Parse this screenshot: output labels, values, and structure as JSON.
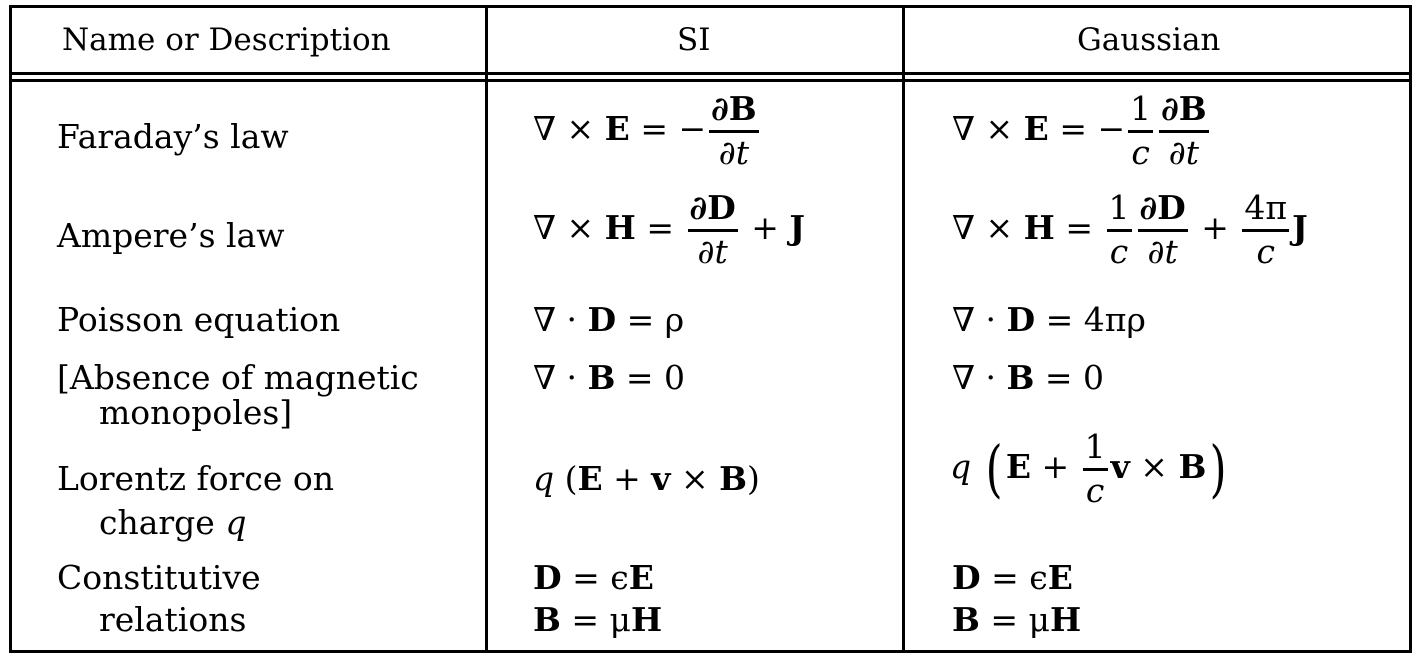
{
  "headers": {
    "description": "Name or Description",
    "si": "SI",
    "gaussian": "Gaussian"
  },
  "rows": {
    "faraday": {
      "label": "Faraday’s law",
      "si": {
        "lhs": "∇ × ",
        "E": "E",
        "eq": " = −",
        "num": "∂B",
        "den": "∂t"
      },
      "gauss": {
        "lhs": "∇ × ",
        "E": "E",
        "eq": " = −",
        "one": "1",
        "c": "c",
        "num": "∂B",
        "den": "∂t"
      }
    },
    "ampere": {
      "label": "Ampere’s law",
      "si": {
        "lhs": "∇ × ",
        "H": "H",
        "eq": " = ",
        "num": "∂D",
        "den": "∂t",
        "plus": " + ",
        "J": "J"
      },
      "gauss": {
        "lhs": "∇ × ",
        "H": "H",
        "eq": " = ",
        "one": "1",
        "c": "c",
        "num": "∂D",
        "den": "∂t",
        "plus": " + ",
        "fpi": "4π",
        "c2": "c",
        "J": "J"
      }
    },
    "poisson": {
      "label": "Poisson equation",
      "si": {
        "lhs": "∇ · ",
        "D": "D",
        "rhs": " = ρ"
      },
      "gauss": {
        "lhs": "∇ · ",
        "D": "D",
        "rhs": " = 4πρ"
      }
    },
    "monopoles": {
      "label1": "[Absence of magnetic",
      "label2": "monopoles]",
      "si": {
        "lhs": "∇ · ",
        "B": "B",
        "rhs": " = 0"
      },
      "gauss": {
        "lhs": "∇ · ",
        "B": "B",
        "rhs": " = 0"
      }
    },
    "lorentz": {
      "label1": "Lorentz force on",
      "label2": "charge ",
      "label2_var": "q",
      "si": {
        "q": "q",
        "open": " (",
        "E": "E",
        "plus": " + ",
        "v": "v",
        "times": " × ",
        "B": "B",
        "close": ")"
      },
      "gauss": {
        "q": "q",
        "open": "(",
        "E": "E",
        "plus": " + ",
        "one": "1",
        "c": "c",
        "v": "v",
        "times": " × ",
        "B": "B",
        "close": ")"
      }
    },
    "constitutive": {
      "label1": "Constitutive",
      "label2": "relations",
      "si": {
        "D": "D",
        "eq1": " = ϵ",
        "E": "E",
        "B": "B",
        "eq2": " = μ",
        "H": "H"
      },
      "gauss": {
        "D": "D",
        "eq1": " = ϵ",
        "E": "E",
        "B": "B",
        "eq2": " = μ",
        "H": "H"
      }
    }
  }
}
